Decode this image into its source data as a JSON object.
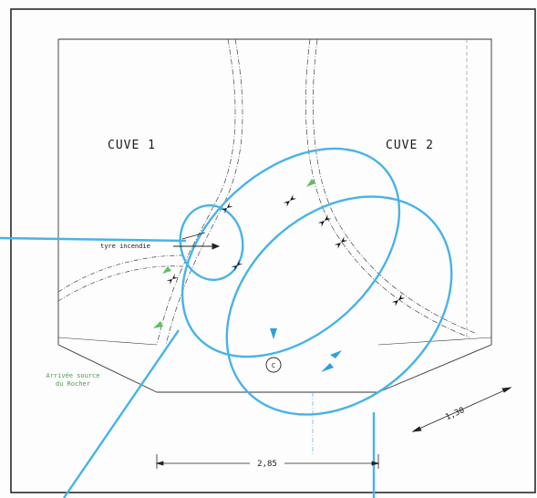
{
  "labels": {
    "cuve1": "CUVE 1",
    "cuve2": "CUVE 2",
    "arrivee_line1": "Arrivée source",
    "arrivee_line2": "du Rocher",
    "pipe_label": "tyre incendie",
    "dim_width": "2,85",
    "dim_diag": "1,30",
    "center_mark": "C"
  },
  "colors": {
    "frame": "#2a2a2a",
    "drawing": "#333333",
    "annotation_blue": "#47b3e6",
    "arrow_blue": "#2f9fe0",
    "arrow_green": "#5cc25c",
    "green_text": "#4c9a4c"
  }
}
